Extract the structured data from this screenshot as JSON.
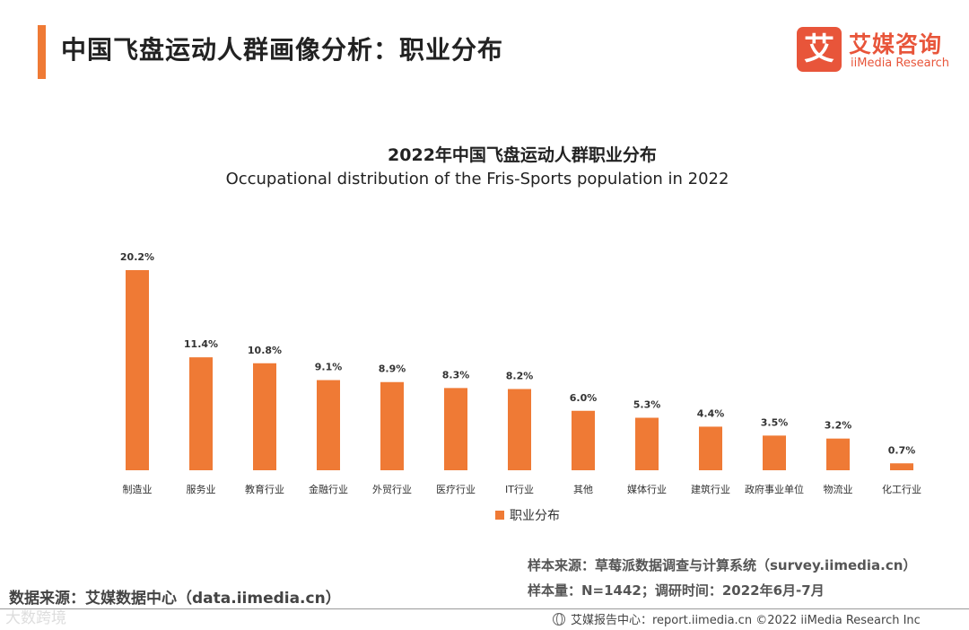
{
  "header": {
    "title": "中国飞盘运动人群画像分析：职业分布",
    "logo_mark": "艾",
    "logo_cn": "艾媒咨询",
    "logo_en": "iiMedia Research"
  },
  "chart_data": {
    "type": "bar",
    "title": "2022年中国飞盘运动人群职业分布",
    "subtitle": "Occupational distribution of the Fris-Sports population in 2022",
    "categories": [
      "制造业",
      "服务业",
      "教育行业",
      "金融行业",
      "外贸行业",
      "医疗行业",
      "IT行业",
      "其他",
      "媒体行业",
      "建筑行业",
      "政府事业单位",
      "物流业",
      "化工行业"
    ],
    "series": [
      {
        "name": "职业分布",
        "values": [
          20.2,
          11.4,
          10.8,
          9.1,
          8.9,
          8.3,
          8.2,
          6.0,
          5.3,
          4.4,
          3.5,
          3.2,
          0.7
        ],
        "labels": [
          "20.2%",
          "11.4%",
          "10.8%",
          "9.1%",
          "8.9%",
          "8.3%",
          "8.2%",
          "6.0%",
          "5.3%",
          "4.4%",
          "3.5%",
          "3.2%",
          "0.7%"
        ]
      }
    ],
    "unit": "%",
    "ylim": [
      0,
      20.2
    ],
    "grid": false,
    "legend": "bottom-center",
    "bar_color": "#ef7a35"
  },
  "notes": {
    "sample_source": "样本来源：草莓派数据调查与计算系统（survey.iimedia.cn）",
    "sample_size": "样本量：N=1442；调研时间：2022年6月-7月",
    "data_source": "数据来源：艾媒数据中心（data.iimedia.cn）",
    "footer": "艾媒报告中心：report.iimedia.cn ©2022 iiMedia Research Inc",
    "watermark": "大数跨境"
  },
  "colors": {
    "accent": "#ef7a35",
    "logo": "#e8553a"
  }
}
